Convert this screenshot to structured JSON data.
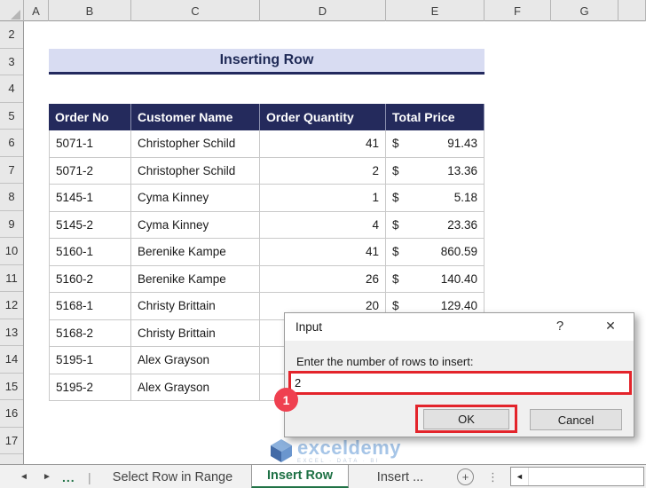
{
  "spreadsheet": {
    "column_headers": [
      "A",
      "B",
      "C",
      "D",
      "E",
      "F",
      "G"
    ],
    "row_headers": [
      "2",
      "3",
      "4",
      "5",
      "6",
      "7",
      "8",
      "9",
      "10",
      "11",
      "12",
      "13",
      "14",
      "15",
      "16",
      "17"
    ],
    "title": "Inserting Row",
    "table": {
      "headers": [
        "Order No",
        "Customer Name",
        "Order Quantity",
        "Total Price"
      ],
      "currency": "$",
      "rows": [
        {
          "order_no": "5071-1",
          "customer": "Christopher Schild",
          "qty": "41",
          "price": "91.43"
        },
        {
          "order_no": "5071-2",
          "customer": "Christopher Schild",
          "qty": "2",
          "price": "13.36"
        },
        {
          "order_no": "5145-1",
          "customer": "Cyma Kinney",
          "qty": "1",
          "price": "5.18"
        },
        {
          "order_no": "5145-2",
          "customer": "Cyma Kinney",
          "qty": "4",
          "price": "23.36"
        },
        {
          "order_no": "5160-1",
          "customer": "Berenike Kampe",
          "qty": "41",
          "price": "860.59"
        },
        {
          "order_no": "5160-2",
          "customer": "Berenike Kampe",
          "qty": "26",
          "price": "140.40"
        },
        {
          "order_no": "5168-1",
          "customer": "Christy Brittain",
          "qty": "20",
          "price": "129.40"
        },
        {
          "order_no": "5168-2",
          "customer": "Christy Brittain",
          "qty": "",
          "price": ""
        },
        {
          "order_no": "5195-1",
          "customer": "Alex Grayson",
          "qty": "",
          "price": ""
        },
        {
          "order_no": "5195-2",
          "customer": "Alex Grayson",
          "qty": "",
          "price": ""
        }
      ]
    }
  },
  "dialog": {
    "title": "Input",
    "help_label": "?",
    "close_label": "✕",
    "prompt": "Enter the number of rows to insert:",
    "input_value": "2",
    "ok_label": "OK",
    "cancel_label": "Cancel"
  },
  "annotations": {
    "badge_1": "1"
  },
  "sheet_tabs": {
    "nav_left": "◄",
    "nav_right": "►",
    "overflow_label": "...",
    "separator": "|",
    "tabs": [
      {
        "label": "Select Row in Range",
        "active": false
      },
      {
        "label": "Insert Row",
        "active": true
      },
      {
        "label": "Insert ...",
        "active": false
      }
    ],
    "add_label": "+",
    "more_label": "⋮",
    "scroll_left": "◄"
  },
  "watermark": {
    "name": "exceldemy",
    "tagline": "EXCEL · DATA · BI"
  },
  "colors": {
    "table_header_bg": "#242a5c",
    "title_band_bg": "#d8dcf2",
    "title_text": "#1f2a56",
    "accent_green": "#217346",
    "annotation_red": "#e3242b",
    "badge_red": "#ef4050",
    "dialog_body_bg": "#f0f0f0",
    "watermark_blue": "#9dbfe5"
  }
}
